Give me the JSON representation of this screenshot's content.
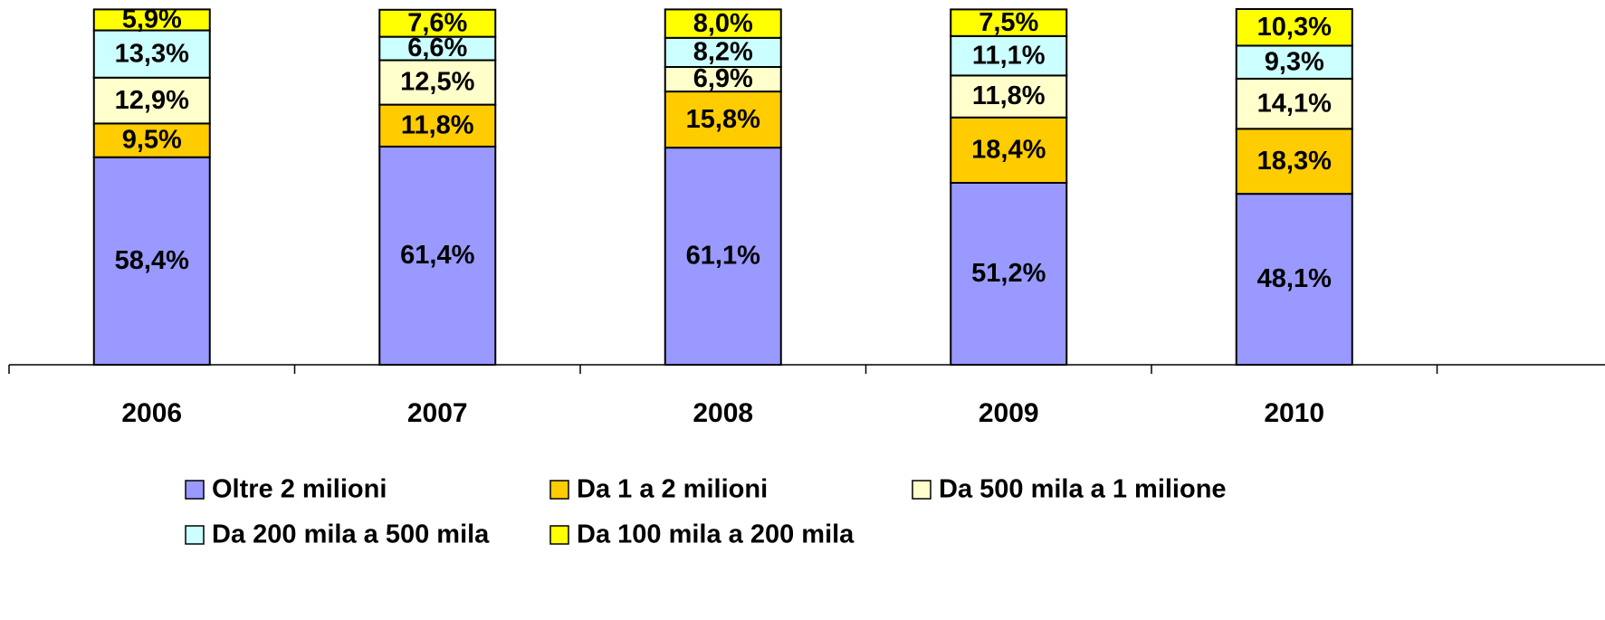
{
  "chart_data": {
    "type": "stacked_bar",
    "categories": [
      "2006",
      "2007",
      "2008",
      "2009",
      "2010"
    ],
    "series": [
      {
        "name": "Oltre 2 milioni",
        "color": "#9999ff",
        "values": [
          58.4,
          61.4,
          61.1,
          51.2,
          48.1
        ],
        "value_labels": [
          "58,4%",
          "61,4%",
          "61,1%",
          "51,2%",
          "48,1%"
        ]
      },
      {
        "name": "Da 1 a 2 milioni",
        "color": "#ffcc00",
        "values": [
          9.5,
          11.8,
          15.8,
          18.4,
          18.3
        ],
        "value_labels": [
          "9,5%",
          "11,8%",
          "15,8%",
          "18,4%",
          "18,3%"
        ]
      },
      {
        "name": "Da 500 mila a 1 milione",
        "color": "#ffffcc",
        "values": [
          12.9,
          12.5,
          6.9,
          11.8,
          14.1
        ],
        "value_labels": [
          "12,9%",
          "12,5%",
          "6,9%",
          "11,8%",
          "14,1%"
        ]
      },
      {
        "name": "Da 200 mila a 500 mila",
        "color": "#ccffff",
        "values": [
          13.3,
          6.6,
          8.2,
          11.1,
          9.3
        ],
        "value_labels": [
          "13,3%",
          "6,6%",
          "8,2%",
          "11,1%",
          "9,3%"
        ]
      },
      {
        "name": "Da 100 mila a 200 mila",
        "color": "#ffff00",
        "values": [
          5.9,
          7.6,
          8.0,
          7.5,
          10.3
        ],
        "value_labels": [
          "5,9%",
          "7,6%",
          "8,0%",
          "7,5%",
          "10,3%"
        ]
      }
    ],
    "legend": "bottom"
  }
}
